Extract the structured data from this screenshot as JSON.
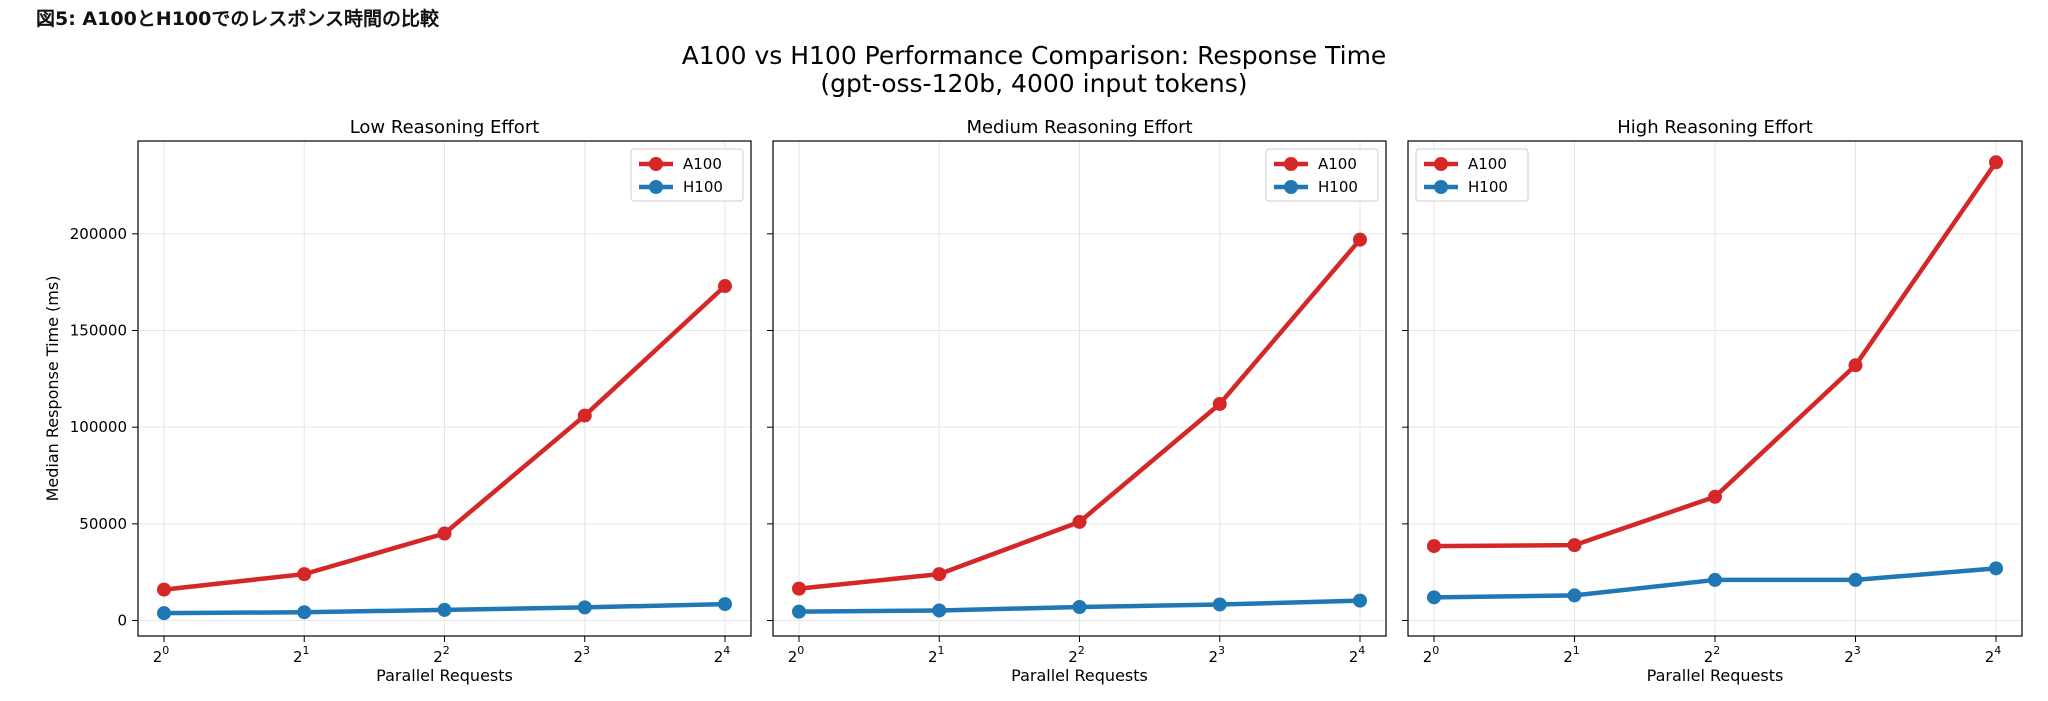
{
  "caption": "図5: A100とH100でのレスポンス時間の比較",
  "figure": {
    "title_line1": "A100 vs H100 Performance Comparison: Response Time",
    "title_line2": "(gpt-oss-120b, 4000 input tokens)"
  },
  "colors": {
    "A100": "#d62728",
    "H100": "#1f77b4",
    "grid": "#e6e6e6",
    "axes": "#000000"
  },
  "chart_data": [
    {
      "type": "line",
      "title": "Low Reasoning Effort",
      "xlabel": "Parallel Requests",
      "ylabel": "Median Response Time (ms)",
      "x": [
        1,
        2,
        4,
        8,
        16
      ],
      "x_scale": "log2",
      "x_tick_labels": [
        {
          "base": "2",
          "exp": "0"
        },
        {
          "base": "2",
          "exp": "1"
        },
        {
          "base": "2",
          "exp": "2"
        },
        {
          "base": "2",
          "exp": "3"
        },
        {
          "base": "2",
          "exp": "4"
        }
      ],
      "ylim": [
        -8000,
        248000
      ],
      "yticks": [
        0,
        50000,
        100000,
        150000,
        200000
      ],
      "ytick_labels": [
        "0",
        "50000",
        "100000",
        "150000",
        "200000"
      ],
      "grid": true,
      "legend": "top-right",
      "series": [
        {
          "name": "A100",
          "values": [
            16000,
            24000,
            45000,
            106000,
            173000
          ]
        },
        {
          "name": "H100",
          "values": [
            3800,
            4300,
            5500,
            6800,
            8500
          ]
        }
      ]
    },
    {
      "type": "line",
      "title": "Medium Reasoning Effort",
      "xlabel": "Parallel Requests",
      "ylabel": "",
      "x": [
        1,
        2,
        4,
        8,
        16
      ],
      "x_scale": "log2",
      "x_tick_labels": [
        {
          "base": "2",
          "exp": "0"
        },
        {
          "base": "2",
          "exp": "1"
        },
        {
          "base": "2",
          "exp": "2"
        },
        {
          "base": "2",
          "exp": "3"
        },
        {
          "base": "2",
          "exp": "4"
        }
      ],
      "ylim": [
        -8000,
        248000
      ],
      "yticks": [
        0,
        50000,
        100000,
        150000,
        200000
      ],
      "ytick_labels": [],
      "grid": true,
      "legend": "top-right",
      "series": [
        {
          "name": "A100",
          "values": [
            16500,
            24000,
            51000,
            112000,
            197000
          ]
        },
        {
          "name": "H100",
          "values": [
            4600,
            5200,
            7000,
            8300,
            10300
          ]
        }
      ]
    },
    {
      "type": "line",
      "title": "High Reasoning Effort",
      "xlabel": "Parallel Requests",
      "ylabel": "",
      "x": [
        1,
        2,
        4,
        8,
        16
      ],
      "x_scale": "log2",
      "x_tick_labels": [
        {
          "base": "2",
          "exp": "0"
        },
        {
          "base": "2",
          "exp": "1"
        },
        {
          "base": "2",
          "exp": "2"
        },
        {
          "base": "2",
          "exp": "3"
        },
        {
          "base": "2",
          "exp": "4"
        }
      ],
      "ylim": [
        -8000,
        248000
      ],
      "yticks": [
        0,
        50000,
        100000,
        150000,
        200000
      ],
      "ytick_labels": [],
      "grid": true,
      "legend": "top-left",
      "series": [
        {
          "name": "A100",
          "values": [
            38500,
            39000,
            64000,
            132000,
            237000
          ]
        },
        {
          "name": "H100",
          "values": [
            12000,
            13000,
            21000,
            21000,
            27000
          ]
        }
      ]
    }
  ]
}
